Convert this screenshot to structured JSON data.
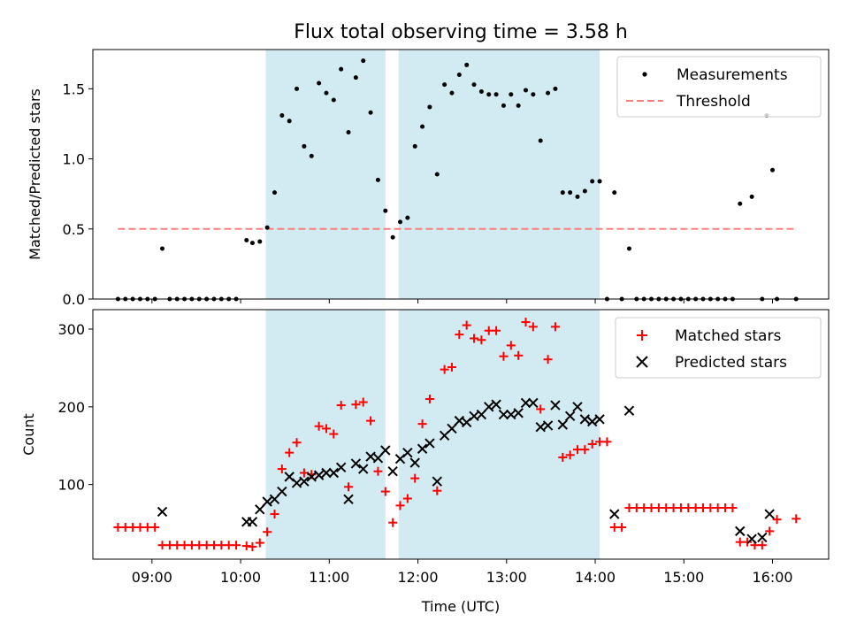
{
  "chart_data": [
    {
      "type": "scatter",
      "title": "Flux total observing time = 3.58 h",
      "ylabel": "Matched/Predicted stars",
      "xlabel": "",
      "xlim": [
        "08:20",
        "16:38"
      ],
      "ylim": [
        0,
        1.78
      ],
      "yticks": [
        "0.0",
        "0.5",
        "1.0",
        "1.5"
      ],
      "yticks_values": [
        0,
        0.5,
        1.0,
        1.5
      ],
      "grid": false,
      "legend_position": "top-right",
      "shaded_intervals": [
        [
          "10:17",
          "11:38"
        ],
        [
          "11:47",
          "14:03"
        ]
      ],
      "shade_color": "#add8e6",
      "series": [
        {
          "name": "Measurements",
          "marker": "dot",
          "color": "#000000",
          "points": [
            [
              "08:37",
              0
            ],
            [
              "08:42",
              0
            ],
            [
              "08:47",
              0
            ],
            [
              "08:52",
              0
            ],
            [
              "08:57",
              0
            ],
            [
              "09:02",
              0
            ],
            [
              "09:07",
              0.36
            ],
            [
              "09:12",
              0
            ],
            [
              "09:17",
              0
            ],
            [
              "09:22",
              0
            ],
            [
              "09:27",
              0
            ],
            [
              "09:32",
              0
            ],
            [
              "09:37",
              0
            ],
            [
              "09:42",
              0
            ],
            [
              "09:47",
              0
            ],
            [
              "09:52",
              0
            ],
            [
              "09:57",
              0
            ],
            [
              "10:04",
              0.42
            ],
            [
              "10:08",
              0.4
            ],
            [
              "10:13",
              0.41
            ],
            [
              "10:18",
              0.51
            ],
            [
              "10:23",
              0.76
            ],
            [
              "10:28",
              1.31
            ],
            [
              "10:33",
              1.27
            ],
            [
              "10:38",
              1.5
            ],
            [
              "10:43",
              1.09
            ],
            [
              "10:48",
              1.02
            ],
            [
              "10:53",
              1.54
            ],
            [
              "10:58",
              1.47
            ],
            [
              "11:03",
              1.42
            ],
            [
              "11:08",
              1.64
            ],
            [
              "11:13",
              1.19
            ],
            [
              "11:18",
              1.58
            ],
            [
              "11:23",
              1.7
            ],
            [
              "11:28",
              1.33
            ],
            [
              "11:33",
              0.85
            ],
            [
              "11:38",
              0.63
            ],
            [
              "11:43",
              0.44
            ],
            [
              "11:48",
              0.55
            ],
            [
              "11:53",
              0.58
            ],
            [
              "11:58",
              1.09
            ],
            [
              "12:03",
              1.23
            ],
            [
              "12:08",
              1.37
            ],
            [
              "12:13",
              0.89
            ],
            [
              "12:18",
              1.53
            ],
            [
              "12:23",
              1.47
            ],
            [
              "12:28",
              1.6
            ],
            [
              "12:33",
              1.67
            ],
            [
              "12:38",
              1.53
            ],
            [
              "12:43",
              1.48
            ],
            [
              "12:48",
              1.46
            ],
            [
              "12:53",
              1.46
            ],
            [
              "12:58",
              1.38
            ],
            [
              "13:03",
              1.46
            ],
            [
              "13:08",
              1.38
            ],
            [
              "13:13",
              1.49
            ],
            [
              "13:18",
              1.46
            ],
            [
              "13:23",
              1.13
            ],
            [
              "13:28",
              1.47
            ],
            [
              "13:33",
              1.5
            ],
            [
              "13:38",
              0.76
            ],
            [
              "13:43",
              0.76
            ],
            [
              "13:48",
              0.73
            ],
            [
              "13:53",
              0.77
            ],
            [
              "13:58",
              0.84
            ],
            [
              "14:03",
              0.84
            ],
            [
              "14:08",
              0
            ],
            [
              "14:13",
              0.76
            ],
            [
              "14:18",
              0
            ],
            [
              "14:23",
              0.36
            ],
            [
              "14:28",
              0
            ],
            [
              "14:33",
              0
            ],
            [
              "14:38",
              0
            ],
            [
              "14:43",
              0
            ],
            [
              "14:48",
              0
            ],
            [
              "14:53",
              0
            ],
            [
              "14:58",
              0
            ],
            [
              "15:03",
              0
            ],
            [
              "15:08",
              0
            ],
            [
              "15:13",
              0
            ],
            [
              "15:18",
              0
            ],
            [
              "15:23",
              0
            ],
            [
              "15:28",
              0
            ],
            [
              "15:33",
              0
            ],
            [
              "15:38",
              0.68
            ],
            [
              "15:46",
              0.73
            ],
            [
              "15:53",
              0
            ],
            [
              "15:56",
              1.31
            ],
            [
              "16:00",
              0.92
            ],
            [
              "16:03",
              0
            ],
            [
              "16:16",
              0
            ]
          ]
        },
        {
          "name": "Threshold",
          "marker": "dashed-line",
          "color": "#ff7f7f",
          "points": [
            [
              "08:37",
              0.5
            ],
            [
              "16:16",
              0.5
            ]
          ]
        }
      ]
    },
    {
      "type": "scatter",
      "title": "",
      "ylabel": "Count",
      "xlabel": "Time (UTC)",
      "xlim": [
        "08:20",
        "16:38"
      ],
      "ylim": [
        4,
        325
      ],
      "yticks": [
        "100",
        "200",
        "300"
      ],
      "yticks_values": [
        100,
        200,
        300
      ],
      "xticks": [
        "09:00",
        "10:00",
        "11:00",
        "12:00",
        "13:00",
        "14:00",
        "15:00",
        "16:00"
      ],
      "grid": false,
      "legend_position": "top-right",
      "shaded_intervals": [
        [
          "10:17",
          "11:38"
        ],
        [
          "11:47",
          "14:03"
        ]
      ],
      "shade_color": "#add8e6",
      "series": [
        {
          "name": "Matched stars",
          "marker": "plus",
          "color": "#ff0000",
          "points": [
            [
              "08:37",
              45
            ],
            [
              "08:42",
              45
            ],
            [
              "08:47",
              45
            ],
            [
              "08:52",
              45
            ],
            [
              "08:57",
              45
            ],
            [
              "09:02",
              45
            ],
            [
              "09:07",
              22
            ],
            [
              "09:12",
              22
            ],
            [
              "09:17",
              22
            ],
            [
              "09:22",
              22
            ],
            [
              "09:27",
              22
            ],
            [
              "09:32",
              22
            ],
            [
              "09:37",
              22
            ],
            [
              "09:42",
              22
            ],
            [
              "09:47",
              22
            ],
            [
              "09:52",
              22
            ],
            [
              "09:57",
              22
            ],
            [
              "10:04",
              21
            ],
            [
              "10:08",
              20
            ],
            [
              "10:13",
              25
            ],
            [
              "10:18",
              39
            ],
            [
              "10:23",
              62
            ],
            [
              "10:28",
              120
            ],
            [
              "10:33",
              141
            ],
            [
              "10:38",
              154
            ],
            [
              "10:43",
              115
            ],
            [
              "10:48",
              113
            ],
            [
              "10:53",
              175
            ],
            [
              "10:58",
              172
            ],
            [
              "11:03",
              165
            ],
            [
              "11:08",
              202
            ],
            [
              "11:13",
              97
            ],
            [
              "11:18",
              203
            ],
            [
              "11:23",
              206
            ],
            [
              "11:28",
              182
            ],
            [
              "11:33",
              117
            ],
            [
              "11:38",
              91
            ],
            [
              "11:43",
              51
            ],
            [
              "11:48",
              73
            ],
            [
              "11:53",
              82
            ],
            [
              "11:58",
              108
            ],
            [
              "12:03",
              178
            ],
            [
              "12:08",
              210
            ],
            [
              "12:13",
              92
            ],
            [
              "12:18",
              248
            ],
            [
              "12:23",
              251
            ],
            [
              "12:28",
              293
            ],
            [
              "12:33",
              305
            ],
            [
              "12:38",
              288
            ],
            [
              "12:43",
              286
            ],
            [
              "12:48",
              298
            ],
            [
              "12:53",
              298
            ],
            [
              "12:58",
              265
            ],
            [
              "13:03",
              279
            ],
            [
              "13:08",
              266
            ],
            [
              "13:13",
              309
            ],
            [
              "13:18",
              303
            ],
            [
              "13:23",
              197
            ],
            [
              "13:28",
              261
            ],
            [
              "13:33",
              303
            ],
            [
              "13:38",
              135
            ],
            [
              "13:43",
              138
            ],
            [
              "13:48",
              145
            ],
            [
              "13:53",
              145
            ],
            [
              "13:58",
              152
            ],
            [
              "14:03",
              155
            ],
            [
              "14:08",
              155
            ],
            [
              "14:13",
              45
            ],
            [
              "14:18",
              45
            ],
            [
              "14:23",
              70
            ],
            [
              "14:28",
              70
            ],
            [
              "14:33",
              70
            ],
            [
              "14:38",
              70
            ],
            [
              "14:43",
              70
            ],
            [
              "14:48",
              70
            ],
            [
              "14:53",
              70
            ],
            [
              "14:58",
              70
            ],
            [
              "15:03",
              70
            ],
            [
              "15:08",
              70
            ],
            [
              "15:13",
              70
            ],
            [
              "15:18",
              70
            ],
            [
              "15:23",
              70
            ],
            [
              "15:28",
              70
            ],
            [
              "15:33",
              70
            ],
            [
              "15:38",
              26
            ],
            [
              "15:43",
              26
            ],
            [
              "15:48",
              22
            ],
            [
              "15:53",
              22
            ],
            [
              "15:58",
              40
            ],
            [
              "16:03",
              55
            ],
            [
              "16:16",
              56
            ]
          ]
        },
        {
          "name": "Predicted stars",
          "marker": "x",
          "color": "#000000",
          "points": [
            [
              "09:07",
              65
            ],
            [
              "10:04",
              52
            ],
            [
              "10:08",
              52
            ],
            [
              "10:13",
              68
            ],
            [
              "10:18",
              78
            ],
            [
              "10:23",
              81
            ],
            [
              "10:28",
              91
            ],
            [
              "10:33",
              110
            ],
            [
              "10:38",
              102
            ],
            [
              "10:43",
              104
            ],
            [
              "10:48",
              110
            ],
            [
              "10:53",
              112
            ],
            [
              "10:58",
              115
            ],
            [
              "11:03",
              115
            ],
            [
              "11:08",
              122
            ],
            [
              "11:13",
              81
            ],
            [
              "11:18",
              127
            ],
            [
              "11:23",
              120
            ],
            [
              "11:28",
              136
            ],
            [
              "11:33",
              134
            ],
            [
              "11:38",
              144
            ],
            [
              "11:43",
              117
            ],
            [
              "11:48",
              133
            ],
            [
              "11:53",
              141
            ],
            [
              "11:58",
              128
            ],
            [
              "12:03",
              146
            ],
            [
              "12:08",
              153
            ],
            [
              "12:13",
              104
            ],
            [
              "12:18",
              163
            ],
            [
              "12:23",
              172
            ],
            [
              "12:28",
              182
            ],
            [
              "12:33",
              180
            ],
            [
              "12:38",
              188
            ],
            [
              "12:43",
              190
            ],
            [
              "12:48",
              200
            ],
            [
              "12:53",
              203
            ],
            [
              "12:58",
              190
            ],
            [
              "13:03",
              190
            ],
            [
              "13:08",
              192
            ],
            [
              "13:13",
              205
            ],
            [
              "13:18",
              205
            ],
            [
              "13:23",
              174
            ],
            [
              "13:28",
              176
            ],
            [
              "13:33",
              202
            ],
            [
              "13:38",
              177
            ],
            [
              "13:43",
              188
            ],
            [
              "13:48",
              200
            ],
            [
              "13:53",
              184
            ],
            [
              "13:58",
              181
            ],
            [
              "14:03",
              184
            ],
            [
              "14:13",
              62
            ],
            [
              "14:23",
              195
            ],
            [
              "15:38",
              40
            ],
            [
              "15:46",
              30
            ],
            [
              "15:53",
              32
            ],
            [
              "15:58",
              62
            ]
          ]
        }
      ]
    }
  ]
}
